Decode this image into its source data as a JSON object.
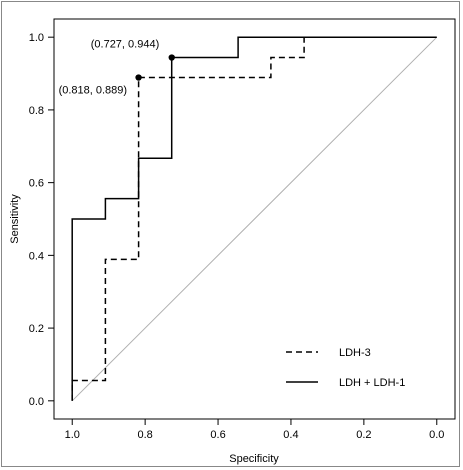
{
  "chart_data": {
    "type": "line",
    "title": "",
    "xlabel": "Specificity",
    "ylabel": "Sensitivity",
    "xlim": [
      1.05,
      -0.05
    ],
    "ylim": [
      -0.05,
      1.05
    ],
    "x_reversed": true,
    "xticks": [
      1.0,
      0.8,
      0.6,
      0.4,
      0.2,
      0.0
    ],
    "xtick_labels": [
      "1.0",
      "0.8",
      "0.6",
      "0.4",
      "0.2",
      "0.0"
    ],
    "yticks": [
      0.0,
      0.2,
      0.4,
      0.6,
      0.8,
      1.0
    ],
    "ytick_labels": [
      "0.0",
      "0.2",
      "0.4",
      "0.6",
      "0.8",
      "1.0"
    ],
    "grid": false,
    "legend_position": "bottom-right",
    "reference_line": {
      "x": [
        1.0,
        0.0
      ],
      "y": [
        0.0,
        1.0
      ],
      "color": "#b0b0b0"
    },
    "series": [
      {
        "name": "LDH-3",
        "style": "dashed",
        "color": "#000000",
        "x": [
          1.0,
          1.0,
          0.909,
          0.909,
          0.818,
          0.818,
          0.455,
          0.455,
          0.364,
          0.364,
          0.0
        ],
        "y": [
          0.0,
          0.056,
          0.056,
          0.389,
          0.389,
          0.889,
          0.889,
          0.944,
          0.944,
          1.0,
          1.0
        ]
      },
      {
        "name": "LDH + LDH-1",
        "style": "solid",
        "color": "#000000",
        "x": [
          1.0,
          1.0,
          0.909,
          0.909,
          0.818,
          0.818,
          0.727,
          0.727,
          0.545,
          0.545,
          0.0
        ],
        "y": [
          0.0,
          0.5,
          0.5,
          0.556,
          0.556,
          0.667,
          0.667,
          0.944,
          0.944,
          1.0,
          1.0
        ]
      }
    ],
    "annotations": [
      {
        "x": 0.727,
        "y": 0.944,
        "label": "(0.727, 0.944)",
        "placement": "upper-left"
      },
      {
        "x": 0.818,
        "y": 0.889,
        "label": "(0.818, 0.889)",
        "placement": "lower-left"
      }
    ]
  }
}
